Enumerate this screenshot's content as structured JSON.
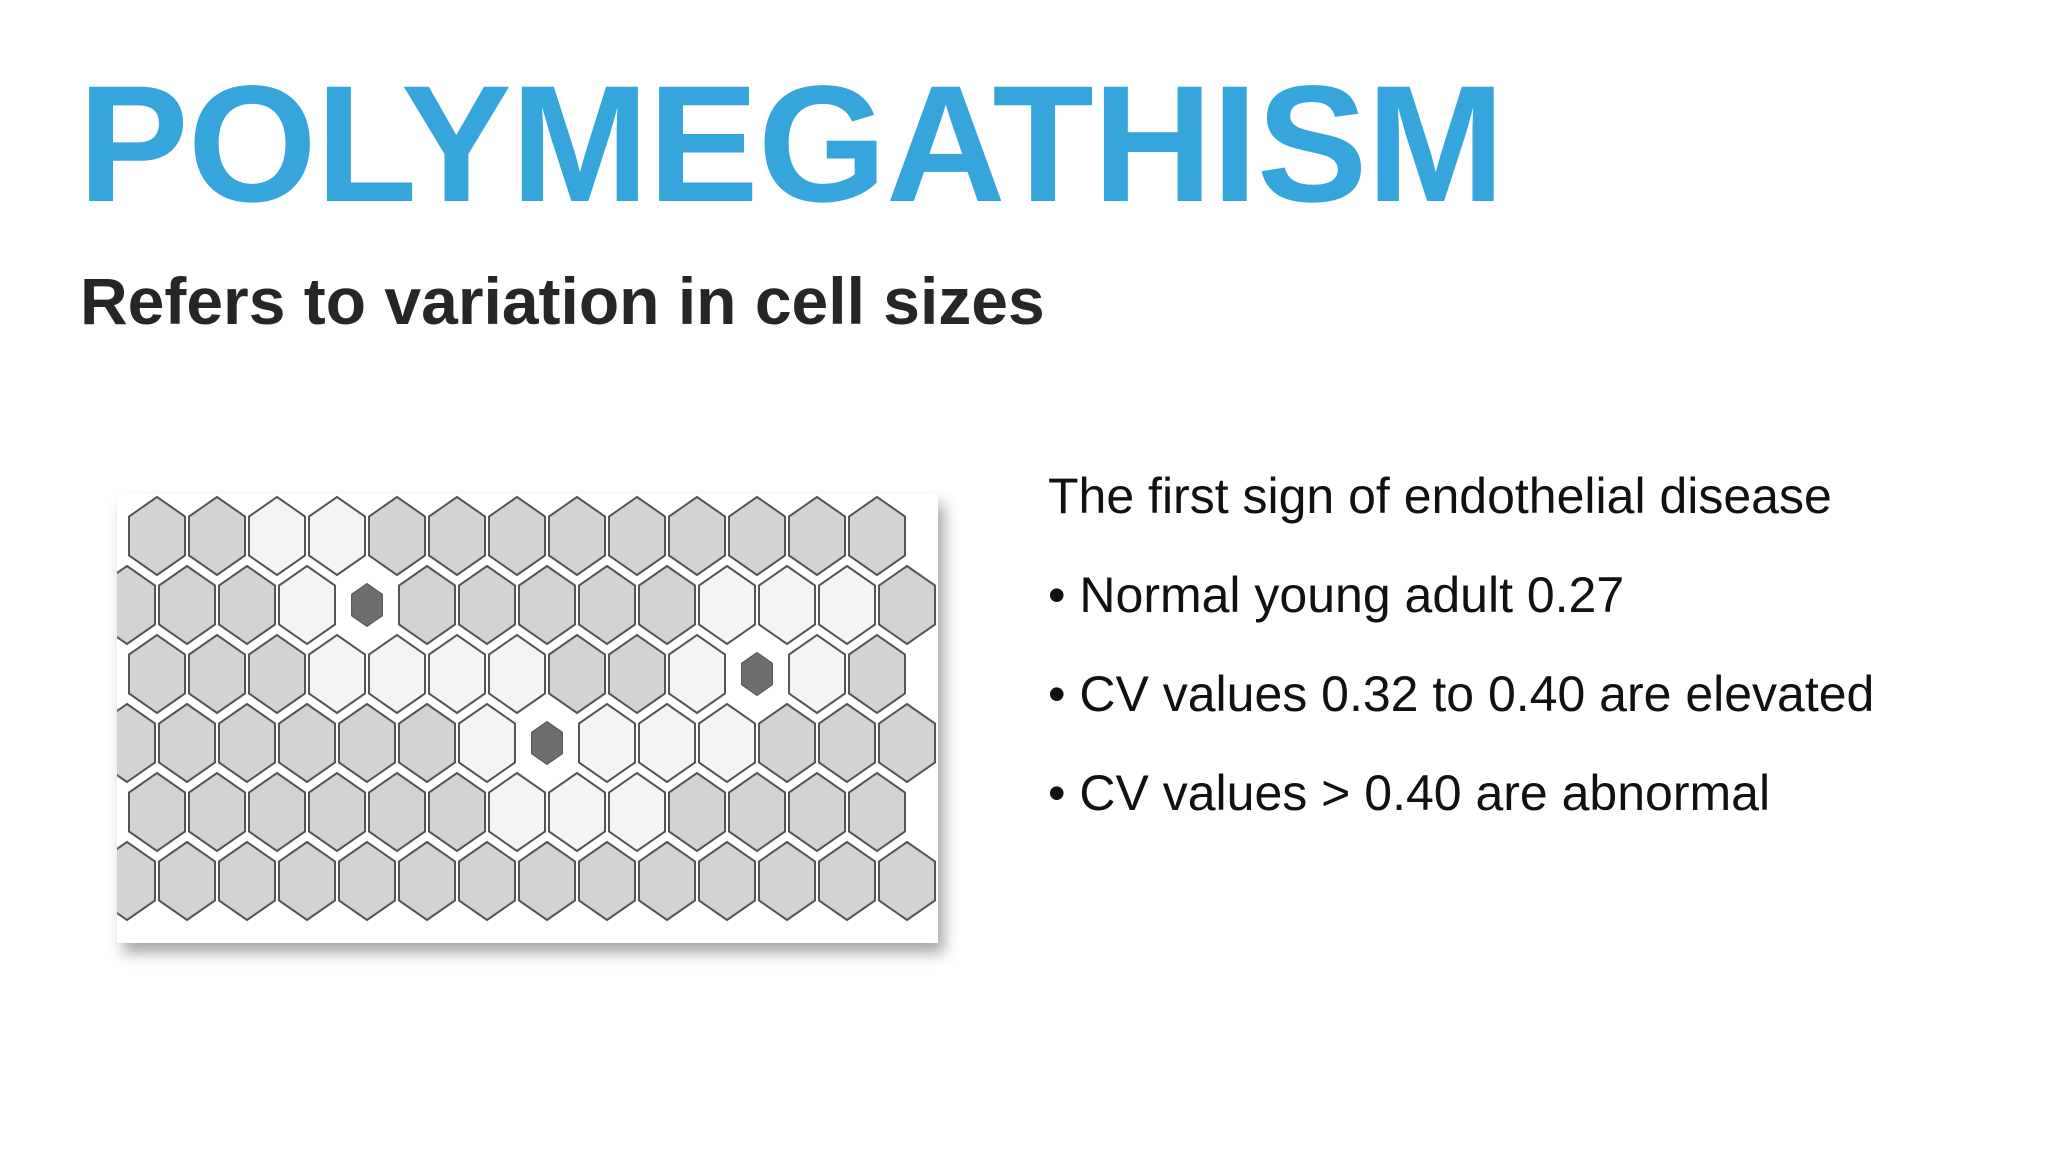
{
  "header": {
    "title": "POLYMEGATHISM",
    "subtitle": "Refers to variation in cell sizes"
  },
  "content": {
    "intro": "The first sign of endothelial disease",
    "bullets": [
      "• Normal young adult 0.27",
      "• CV values 0.32 to 0.40 are elevated",
      "• CV values > 0.40 are abnormal"
    ]
  }
}
